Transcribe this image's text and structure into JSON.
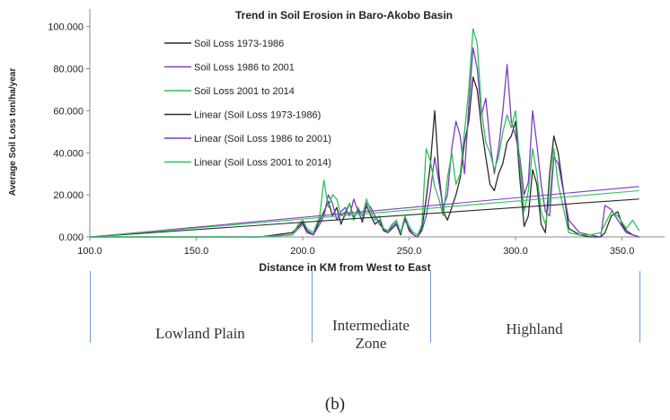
{
  "caption": "(b)",
  "zones": [
    {
      "label": "Lowland Plain"
    },
    {
      "label": "Intermediate Zone"
    },
    {
      "label": "Highland"
    }
  ],
  "zone_boundaries_km": [
    100,
    204,
    260,
    358
  ],
  "chart_data": {
    "type": "line",
    "title": "Trend in Soil Erosion in Baro-Akobo Basin",
    "xlabel": "Distance in KM from West to East",
    "ylabel": "Average Soil Loss ton/ha/year",
    "xlim": [
      100,
      370
    ],
    "ylim": [
      0,
      105
    ],
    "xticks": [
      100,
      150,
      200,
      250,
      300,
      350
    ],
    "xtick_labels": [
      "100.0",
      "150.0",
      "200.0",
      "250.0",
      "300.0",
      "350.0"
    ],
    "yticks": [
      0,
      20,
      40,
      60,
      80,
      100
    ],
    "ytick_labels": [
      "0.000",
      "20.000",
      "40.000",
      "60.000",
      "80.000",
      "100.000"
    ],
    "legend_position": "top-left",
    "series": [
      {
        "name": "Soil Loss 1973-1986",
        "color": "#2b2b2b",
        "kind": "data",
        "x": [
          100,
          180,
          195,
          198,
          200,
          202,
          205,
          208,
          210,
          212,
          214,
          216,
          218,
          220,
          222,
          224,
          226,
          228,
          230,
          232,
          234,
          236,
          238,
          240,
          242,
          244,
          246,
          248,
          250,
          252,
          254,
          256,
          258,
          260,
          262,
          264,
          266,
          268,
          270,
          272,
          274,
          276,
          278,
          280,
          282,
          284,
          286,
          288,
          290,
          292,
          294,
          296,
          298,
          300,
          302,
          304,
          306,
          308,
          310,
          312,
          314,
          316,
          318,
          320,
          325,
          330,
          335,
          340,
          342,
          345,
          348,
          350,
          352,
          355,
          358
        ],
        "y": [
          0,
          0,
          2,
          5,
          7,
          3,
          1,
          8,
          12,
          17,
          10,
          14,
          6,
          11,
          16,
          9,
          13,
          7,
          15,
          10,
          6,
          8,
          3,
          2,
          4,
          6,
          1,
          9,
          3,
          1,
          0,
          4,
          18,
          35,
          60,
          30,
          12,
          8,
          14,
          20,
          28,
          45,
          55,
          76,
          70,
          52,
          38,
          25,
          22,
          30,
          35,
          45,
          48,
          55,
          28,
          5,
          10,
          32,
          25,
          6,
          2,
          30,
          48,
          40,
          4,
          1,
          0,
          0,
          2,
          10,
          12,
          6,
          3,
          1,
          0
        ]
      },
      {
        "name": "Soil Loss 1986 to 2001",
        "color": "#7a3fbf",
        "kind": "data",
        "x": [
          100,
          180,
          195,
          198,
          200,
          202,
          205,
          208,
          210,
          212,
          214,
          216,
          218,
          220,
          222,
          224,
          226,
          228,
          230,
          232,
          234,
          236,
          238,
          240,
          242,
          244,
          246,
          248,
          250,
          252,
          254,
          256,
          258,
          260,
          262,
          264,
          266,
          268,
          270,
          272,
          274,
          276,
          278,
          280,
          282,
          284,
          286,
          288,
          290,
          292,
          294,
          296,
          298,
          300,
          302,
          304,
          306,
          308,
          310,
          312,
          314,
          316,
          318,
          320,
          325,
          330,
          335,
          340,
          342,
          345,
          348,
          350,
          352,
          355,
          358
        ],
        "y": [
          0,
          0,
          1,
          4,
          6,
          2,
          1,
          6,
          10,
          20,
          16,
          8,
          12,
          14,
          10,
          18,
          12,
          8,
          16,
          14,
          10,
          6,
          4,
          2,
          5,
          7,
          2,
          8,
          4,
          1,
          0,
          3,
          10,
          22,
          38,
          26,
          14,
          20,
          42,
          55,
          48,
          30,
          62,
          90,
          80,
          58,
          66,
          45,
          30,
          42,
          60,
          82,
          55,
          48,
          38,
          20,
          26,
          60,
          44,
          25,
          12,
          10,
          38,
          35,
          8,
          2,
          1,
          0,
          15,
          13,
          8,
          5,
          2,
          1,
          0
        ]
      },
      {
        "name": "Soil Loss 2001 to 2014",
        "color": "#2ebf5a",
        "kind": "data",
        "x": [
          100,
          180,
          195,
          198,
          200,
          202,
          205,
          208,
          210,
          212,
          214,
          216,
          218,
          220,
          222,
          224,
          226,
          228,
          230,
          232,
          234,
          236,
          238,
          240,
          242,
          244,
          246,
          248,
          250,
          252,
          254,
          256,
          258,
          260,
          262,
          264,
          266,
          268,
          270,
          272,
          274,
          276,
          278,
          280,
          282,
          284,
          286,
          288,
          290,
          292,
          294,
          296,
          298,
          300,
          302,
          304,
          306,
          308,
          310,
          312,
          314,
          316,
          318,
          320,
          325,
          330,
          335,
          340,
          342,
          345,
          348,
          350,
          352,
          355,
          358
        ],
        "y": [
          0,
          0,
          1,
          6,
          8,
          4,
          2,
          10,
          27,
          14,
          20,
          18,
          10,
          12,
          16,
          8,
          14,
          10,
          18,
          12,
          8,
          10,
          4,
          3,
          6,
          8,
          2,
          10,
          5,
          2,
          1,
          6,
          42,
          36,
          24,
          18,
          10,
          28,
          40,
          25,
          30,
          50,
          70,
          99,
          92,
          60,
          45,
          40,
          32,
          38,
          50,
          58,
          52,
          60,
          35,
          12,
          22,
          42,
          30,
          12,
          6,
          18,
          42,
          25,
          2,
          1,
          1,
          2,
          6,
          12,
          10,
          7,
          4,
          8,
          3
        ]
      },
      {
        "name": "Linear (Soil Loss 1973-1986)",
        "color": "#2b2b2b",
        "kind": "trend",
        "x": [
          100,
          358
        ],
        "y": [
          0,
          18
        ]
      },
      {
        "name": "Linear (Soil Loss 1986 to 2001)",
        "color": "#7a3fbf",
        "kind": "trend",
        "x": [
          100,
          358
        ],
        "y": [
          0,
          24
        ]
      },
      {
        "name": "Linear (Soil Loss 2001 to 2014)",
        "color": "#2ebf5a",
        "kind": "trend",
        "x": [
          100,
          358
        ],
        "y": [
          0,
          22
        ]
      }
    ]
  }
}
